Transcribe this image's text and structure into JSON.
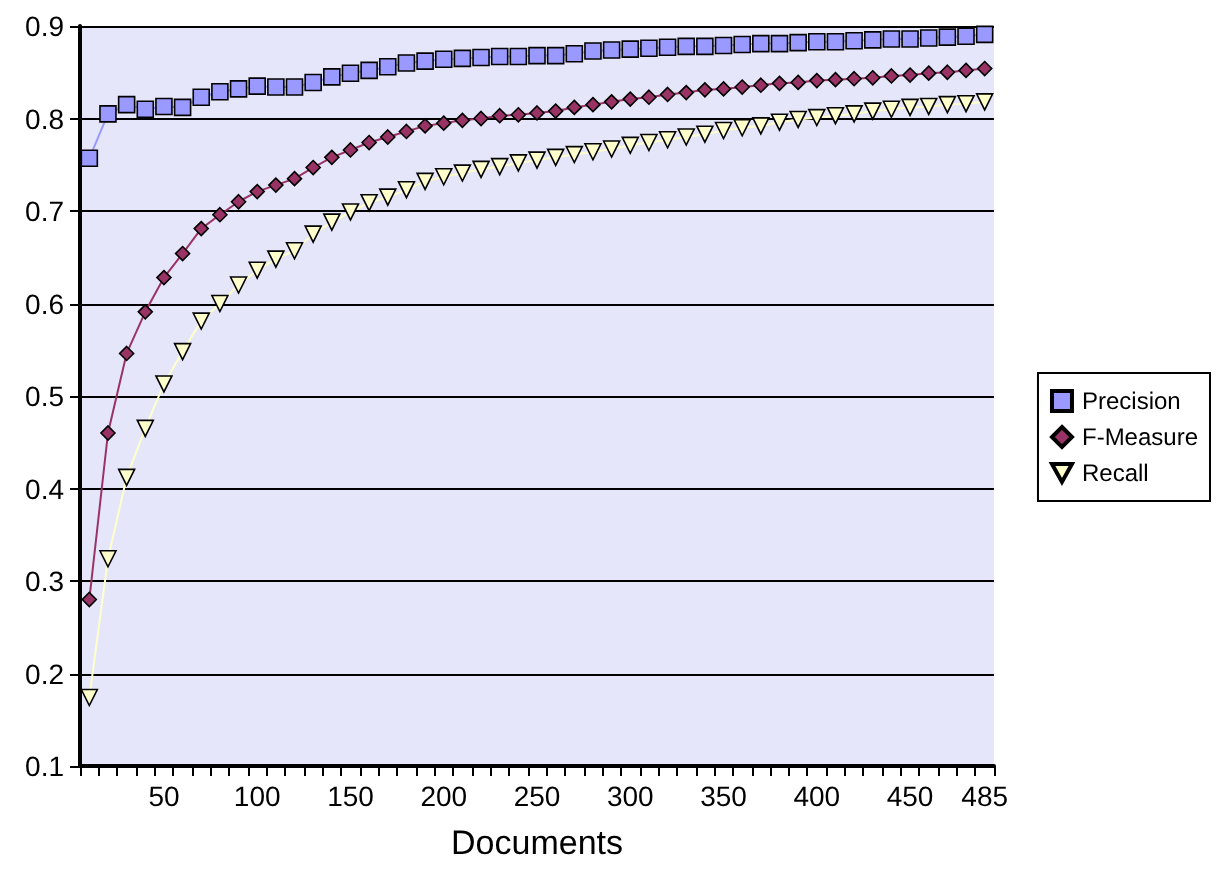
{
  "chart_data": {
    "type": "line",
    "xlabel": "Documents",
    "categories": [
      null,
      null,
      null,
      null,
      "50",
      null,
      null,
      null,
      null,
      "100",
      null,
      null,
      null,
      null,
      "150",
      null,
      null,
      null,
      null,
      "200",
      null,
      null,
      null,
      null,
      "250",
      null,
      null,
      null,
      null,
      "300",
      null,
      null,
      null,
      null,
      "350",
      null,
      null,
      null,
      null,
      "400",
      null,
      null,
      null,
      null,
      "450",
      null,
      null,
      null,
      "485"
    ],
    "series": [
      {
        "name": "Precision",
        "color": "#9999ff",
        "marker": "square",
        "values": [
          0.757,
          0.805,
          0.815,
          0.81,
          0.813,
          0.812,
          0.823,
          0.829,
          0.832,
          0.835,
          0.834,
          0.834,
          0.839,
          0.845,
          0.849,
          0.852,
          0.856,
          0.86,
          0.862,
          0.864,
          0.865,
          0.866,
          0.867,
          0.867,
          0.868,
          0.868,
          0.87,
          0.873,
          0.874,
          0.875,
          0.876,
          0.877,
          0.878,
          0.878,
          0.879,
          0.88,
          0.881,
          0.881,
          0.882,
          0.883,
          0.883,
          0.884,
          0.885,
          0.886,
          0.886,
          0.887,
          0.888,
          0.889,
          0.891
        ]
      },
      {
        "name": "F-Measure",
        "color": "#993366",
        "marker": "diamond",
        "values": [
          0.28,
          0.46,
          0.546,
          0.591,
          0.628,
          0.654,
          0.681,
          0.696,
          0.71,
          0.721,
          0.728,
          0.735,
          0.747,
          0.758,
          0.766,
          0.774,
          0.78,
          0.786,
          0.792,
          0.795,
          0.798,
          0.8,
          0.803,
          0.804,
          0.806,
          0.808,
          0.812,
          0.815,
          0.818,
          0.821,
          0.823,
          0.826,
          0.828,
          0.831,
          0.832,
          0.834,
          0.836,
          0.838,
          0.839,
          0.841,
          0.842,
          0.843,
          0.844,
          0.846,
          0.847,
          0.849,
          0.85,
          0.852,
          0.854
        ]
      },
      {
        "name": "Recall",
        "color": "#ffffcc",
        "marker": "triangle",
        "values": [
          0.174,
          0.324,
          0.412,
          0.465,
          0.513,
          0.548,
          0.581,
          0.6,
          0.62,
          0.636,
          0.648,
          0.657,
          0.675,
          0.688,
          0.699,
          0.709,
          0.715,
          0.723,
          0.732,
          0.737,
          0.741,
          0.745,
          0.748,
          0.752,
          0.755,
          0.758,
          0.761,
          0.764,
          0.767,
          0.771,
          0.774,
          0.777,
          0.78,
          0.783,
          0.787,
          0.79,
          0.792,
          0.796,
          0.799,
          0.801,
          0.803,
          0.805,
          0.808,
          0.81,
          0.812,
          0.813,
          0.815,
          0.816,
          0.818
        ]
      }
    ],
    "ylim": [
      0.1,
      0.9
    ],
    "yticks": [
      0.1,
      0.2,
      0.3,
      0.4,
      0.5,
      0.6,
      0.7,
      0.8,
      0.9
    ],
    "grid": "y",
    "legend": "right",
    "line_style": "solid"
  }
}
